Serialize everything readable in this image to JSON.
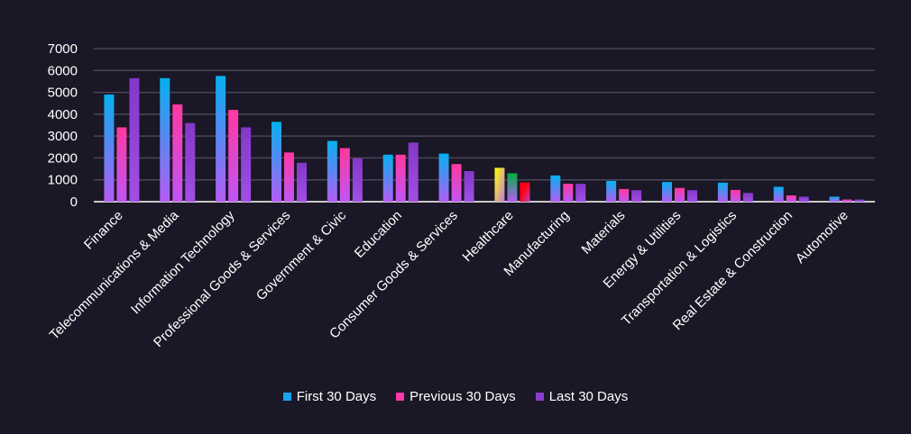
{
  "chart_data": {
    "type": "bar",
    "title": "",
    "xlabel": "",
    "ylabel": "",
    "ylim": [
      0,
      7000
    ],
    "yticks": [
      0,
      1000,
      2000,
      3000,
      4000,
      5000,
      6000,
      7000
    ],
    "grid": true,
    "legend_position": "bottom",
    "categories": [
      "Finance",
      "Telecommunications & Media",
      "Information Technology",
      "Professional Goods & Services",
      "Government & Civic",
      "Education",
      "Consumer Goods & Services",
      "Healthcare",
      "Manufacturing",
      "Materials",
      "Energy & Utilities",
      "Transportation & Logistics",
      "Real Estate & Construction",
      "Automotive"
    ],
    "series": [
      {
        "name": "First 30 Days",
        "color": "#1aa3f0",
        "values": [
          4900,
          5650,
          5750,
          3650,
          2780,
          2150,
          2200,
          1550,
          1200,
          950,
          900,
          870,
          680,
          230
        ]
      },
      {
        "name": "Previous 30 Days",
        "color": "#ff38a8",
        "values": [
          3400,
          4450,
          4200,
          2250,
          2450,
          2150,
          1720,
          1300,
          820,
          580,
          630,
          540,
          290,
          100
        ]
      },
      {
        "name": "Last 30 Days",
        "color": "#8a3fd0",
        "values": [
          5650,
          3600,
          3400,
          1780,
          1980,
          2700,
          1400,
          880,
          820,
          530,
          530,
          400,
          230,
          100
        ]
      }
    ]
  }
}
